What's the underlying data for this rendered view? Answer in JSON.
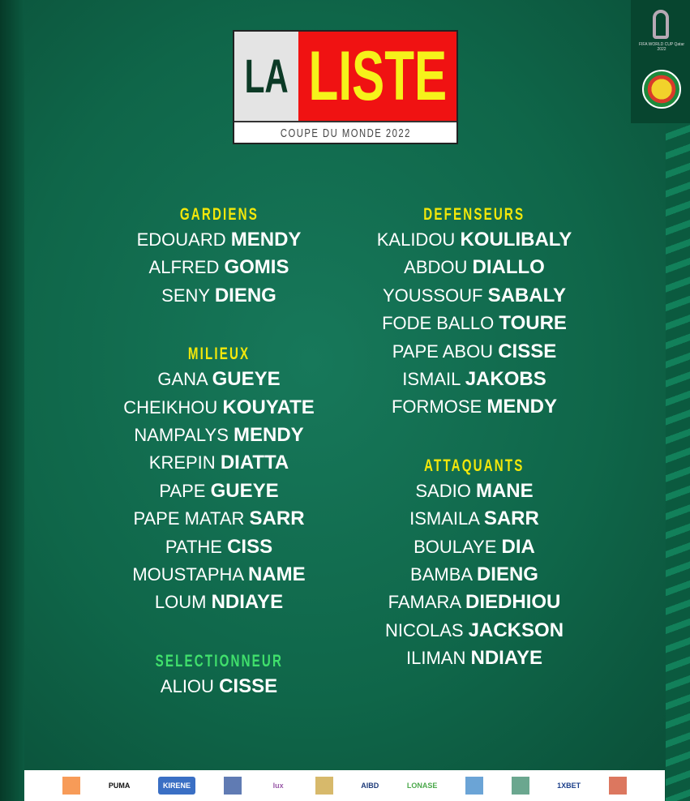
{
  "title": {
    "la": "LA",
    "liste": "LISTE",
    "subtitle": "COUPE DU MONDE 2022"
  },
  "badges": {
    "world_cup": "FIFA WORLD CUP Qatar 2022"
  },
  "colors": {
    "background": "#0f6649",
    "header": "#f3e80a",
    "coach_header": "#40e06c",
    "title_red": "#f01212",
    "title_yellow": "#f6f21a"
  },
  "left": {
    "gardiens": {
      "label": "GARDIENS",
      "players": [
        {
          "first": "EDOUARD",
          "last": "MENDY"
        },
        {
          "first": "ALFRED",
          "last": "GOMIS"
        },
        {
          "first": "SENY",
          "last": "DIENG"
        }
      ]
    },
    "milieux": {
      "label": "MILIEUX",
      "players": [
        {
          "first": "GANA",
          "last": "GUEYE"
        },
        {
          "first": "CHEIKHOU",
          "last": "KOUYATE"
        },
        {
          "first": "NAMPALYS",
          "last": "MENDY"
        },
        {
          "first": "KREPIN",
          "last": "DIATTA"
        },
        {
          "first": "PAPE",
          "last": "GUEYE"
        },
        {
          "first": "PAPE MATAR",
          "last": "SARR"
        },
        {
          "first": "PATHE",
          "last": "CISS"
        },
        {
          "first": "MOUSTAPHA",
          "last": "NAME"
        },
        {
          "first": "LOUM",
          "last": "NDIAYE"
        }
      ]
    },
    "selectionneur": {
      "label": "SELECTIONNEUR",
      "players": [
        {
          "first": "ALIOU",
          "last": "CISSE"
        }
      ]
    }
  },
  "right": {
    "defenseurs": {
      "label": "DEFENSEURS",
      "players": [
        {
          "first": "KALIDOU",
          "last": "KOULIBALY"
        },
        {
          "first": "ABDOU",
          "last": "DIALLO"
        },
        {
          "first": "YOUSSOUF",
          "last": "SABALY"
        },
        {
          "first": "FODE BALLO",
          "last": "TOURE"
        },
        {
          "first": "PAPE ABOU",
          "last": "CISSE"
        },
        {
          "first": "ISMAIL",
          "last": "JAKOBS"
        },
        {
          "first": "FORMOSE",
          "last": "MENDY"
        }
      ]
    },
    "attaquants": {
      "label": "ATTAQUANTS",
      "players": [
        {
          "first": "SADIO",
          "last": "MANE"
        },
        {
          "first": "ISMAILA",
          "last": "SARR"
        },
        {
          "first": "BOULAYE",
          "last": "DIA"
        },
        {
          "first": "BAMBA",
          "last": "DIENG"
        },
        {
          "first": "FAMARA",
          "last": "DIEDHIOU"
        },
        {
          "first": "NICOLAS",
          "last": "JACKSON"
        },
        {
          "first": "ILIMAN",
          "last": "NDIAYE"
        }
      ]
    }
  },
  "sponsors": [
    {
      "name": "orange",
      "text": "",
      "color": "#f47a20"
    },
    {
      "name": "puma",
      "text": "PUMA",
      "color": "#111111"
    },
    {
      "name": "kirene",
      "text": "KIRENE",
      "color": "#3a6fc4"
    },
    {
      "name": "sponsor-4",
      "text": "",
      "color": "#2b4f9a"
    },
    {
      "name": "sponsor-5",
      "text": "lux",
      "color": "#9a5aa8"
    },
    {
      "name": "sponsor-6",
      "text": "",
      "color": "#c9a23a"
    },
    {
      "name": "aibd",
      "text": "AIBD",
      "color": "#1f3c7a"
    },
    {
      "name": "loterie",
      "text": "LONASE",
      "color": "#4aa84a"
    },
    {
      "name": "sponsor-9",
      "text": "",
      "color": "#3a86c8"
    },
    {
      "name": "sponsor-10",
      "text": "",
      "color": "#3a8a6a"
    },
    {
      "name": "1xbet",
      "text": "1XBET",
      "color": "#1c3f8a"
    },
    {
      "name": "sponsor-12",
      "text": "",
      "color": "#d04a2a"
    }
  ]
}
